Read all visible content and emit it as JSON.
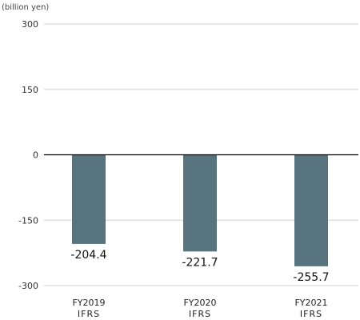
{
  "chart_data": {
    "type": "bar",
    "unit_label": "(billion yen)",
    "categories": [
      {
        "line1": "FY2019",
        "line2": "IFRS"
      },
      {
        "line1": "FY2020",
        "line2": "IFRS"
      },
      {
        "line1": "FY2021",
        "line2": "IFRS"
      }
    ],
    "values": [
      -204.4,
      -221.7,
      -255.7
    ],
    "value_labels": [
      "-204.4",
      "-221.7",
      "-255.7"
    ],
    "ylim": [
      -300,
      300
    ],
    "yticks": [
      300,
      150,
      0,
      -150,
      -300
    ],
    "ytick_labels": [
      "300",
      "150",
      "0",
      "-150",
      "-300"
    ],
    "grid": true,
    "bar_color": "#57737e",
    "grid_color": "#d0d0d0",
    "zero_line_color": "#000000"
  }
}
